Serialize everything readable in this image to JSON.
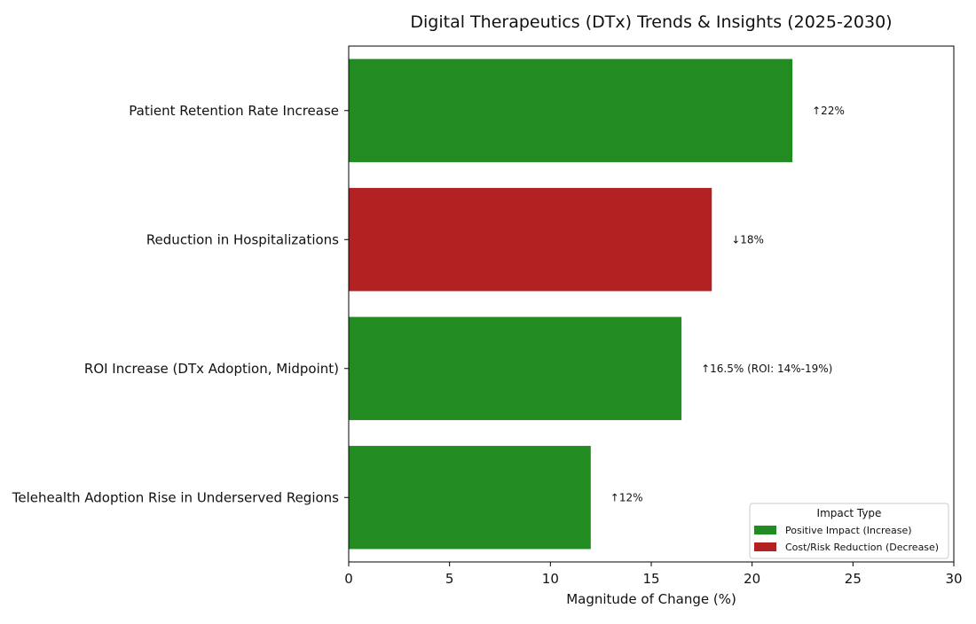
{
  "chart_data": {
    "type": "bar",
    "orientation": "horizontal",
    "title": "Digital Therapeutics (DTx) Trends & Insights (2025-2030)",
    "xlabel": "Magnitude of Change (%)",
    "ylabel": "",
    "xlim": [
      0,
      30
    ],
    "x_ticks": [
      0,
      5,
      10,
      15,
      20,
      25,
      30
    ],
    "grid": false,
    "categories": [
      "Patient Retention Rate Increase",
      "Reduction in Hospitalizations",
      "ROI Increase (DTx Adoption, Midpoint)",
      "Telehealth Adoption Rise in Underserved Regions"
    ],
    "values": [
      22,
      18,
      16.5,
      12
    ],
    "impact_types": [
      "positive",
      "reduction",
      "positive",
      "positive"
    ],
    "bar_labels": [
      "↑22%",
      "↓18%",
      "↑16.5% (ROI: 14%-19%)",
      "↑12%"
    ],
    "colors": {
      "positive": "#228b22",
      "reduction": "#b22222"
    },
    "legend": {
      "title": "Impact Type",
      "placement": "lower-right",
      "entries": [
        {
          "key": "positive",
          "label": "Positive Impact (Increase)"
        },
        {
          "key": "reduction",
          "label": "Cost/Risk Reduction (Decrease)"
        }
      ]
    }
  }
}
